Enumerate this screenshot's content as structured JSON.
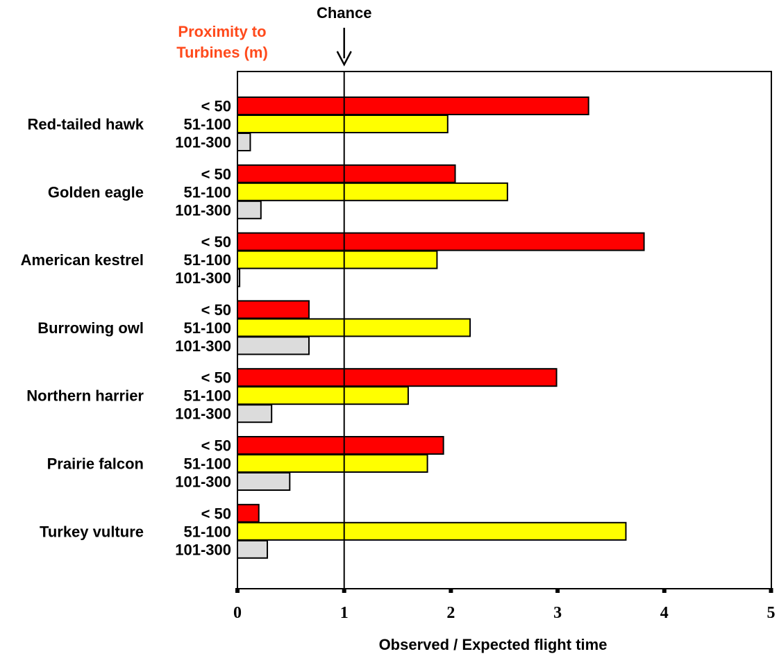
{
  "chart_data": {
    "type": "bar",
    "orientation": "horizontal",
    "xlabel": "Observed / Expected flight time",
    "xlim": [
      0,
      5
    ],
    "xticks": [
      "0",
      "1",
      "2",
      "3",
      "4",
      "5"
    ],
    "legend_title": "Proximity to Turbines (m)",
    "legend_title_lines": [
      "Proximity to",
      "Turbines (m)"
    ],
    "reference_line": {
      "x": 1,
      "label": "Chance"
    },
    "categories": [
      "Red-tailed hawk",
      "Golden eagle",
      "American kestrel",
      "Burrowing owl",
      "Northern harrier",
      "Prairie falcon",
      "Turkey vulture"
    ],
    "series": [
      {
        "name": "< 50",
        "color": "#ff0000",
        "values": [
          3.29,
          2.04,
          3.81,
          0.67,
          2.99,
          1.93,
          0.2
        ]
      },
      {
        "name": "51-100",
        "color": "#ffff00",
        "values": [
          1.97,
          2.53,
          1.87,
          2.18,
          1.6,
          1.78,
          3.64
        ]
      },
      {
        "name": "101-300",
        "color": "#dcdcdc",
        "values": [
          0.12,
          0.22,
          0.02,
          0.67,
          0.32,
          0.49,
          0.28
        ]
      }
    ],
    "grid": false
  }
}
